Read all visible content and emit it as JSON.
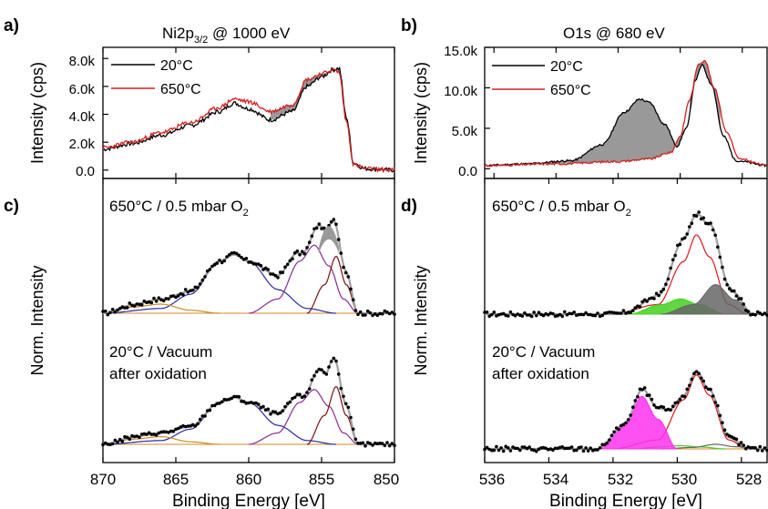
{
  "colors": {
    "rt": "#000000",
    "hot": "#d62020",
    "diff_fill": "#999999",
    "blue": "#2a2aa8",
    "purple": "#8a2a9a",
    "maroon": "#7a1010",
    "orange": "#d08a20",
    "red_comp": "#e01818",
    "green": "#44d020",
    "gray_comp": "#666666",
    "magenta": "#ff33ee",
    "envelope": "#a0a0a0",
    "dots": "#000000"
  },
  "panels": {
    "a": {
      "label": "a)",
      "title": "Ni2p",
      "title_sub": "3/2",
      "title_tail": " @ 1000 eV",
      "ylabel": "Intensity (cps)",
      "yticks": [
        "8.0k",
        "6.0k",
        "4.0k",
        "2.0k",
        "0.0"
      ],
      "legend": [
        "20°C",
        "650°C"
      ]
    },
    "b": {
      "label": "b)",
      "title": "O1s @ 680 eV",
      "ylabel": "Intensity (cps)",
      "yticks": [
        "15.0k",
        "10.0k",
        "5.0k",
        "0.0"
      ],
      "legend": [
        "20°C",
        "650°C"
      ]
    },
    "c": {
      "label": "c)",
      "ylabel": "Norm. Intensity",
      "top_label": "650°C / 0.5 mbar O",
      "top_label_sub": "2",
      "bottom_label_1": "20°C / Vacuum",
      "bottom_label_2": "after oxidation",
      "xticks": [
        "870",
        "865",
        "860",
        "855",
        "850"
      ],
      "xlabel": "Binding Energy [eV]"
    },
    "d": {
      "label": "d)",
      "ylabel": "Norm. Intensity",
      "top_label": "650°C / 0.5 mbar O",
      "top_label_sub": "2",
      "bottom_label_1": "20°C / Vacuum",
      "bottom_label_2": "after oxidation",
      "xticks": [
        "536",
        "534",
        "532",
        "530",
        "528"
      ],
      "xlabel": "Binding Energy [eV]"
    }
  },
  "chart_data": [
    {
      "id": "a",
      "type": "line",
      "xlabel": "",
      "ylabel": "Intensity (cps)",
      "xlim": [
        870,
        850
      ],
      "ylim": [
        -600,
        8800
      ],
      "series": [
        {
          "name": "20°C",
          "color": "#000000",
          "points": [
            [
              870,
              1500
            ],
            [
              868,
              1900
            ],
            [
              866,
              2500
            ],
            [
              864,
              3200
            ],
            [
              862,
              4200
            ],
            [
              861,
              4800
            ],
            [
              860,
              4400
            ],
            [
              858.5,
              3600
            ],
            [
              857,
              4200
            ],
            [
              856,
              6000
            ],
            [
              855,
              6700
            ],
            [
              854.2,
              7200
            ],
            [
              853.8,
              7300
            ],
            [
              853.3,
              3800
            ],
            [
              852.8,
              500
            ],
            [
              852,
              100
            ],
            [
              850,
              0
            ]
          ]
        },
        {
          "name": "650°C",
          "color": "#d62020",
          "points": [
            [
              870,
              1600
            ],
            [
              868,
              2000
            ],
            [
              866,
              2700
            ],
            [
              864,
              3400
            ],
            [
              862,
              4500
            ],
            [
              861,
              5100
            ],
            [
              860,
              4900
            ],
            [
              858.5,
              4200
            ],
            [
              857,
              4700
            ],
            [
              856,
              6500
            ],
            [
              855,
              6900
            ],
            [
              854.2,
              7200
            ],
            [
              853.8,
              7000
            ],
            [
              853.3,
              3500
            ],
            [
              852.8,
              400
            ],
            [
              852,
              100
            ],
            [
              850,
              0
            ]
          ]
        }
      ]
    },
    {
      "id": "b",
      "type": "line",
      "xlabel": "",
      "ylabel": "Intensity (cps)",
      "xlim": [
        536.3,
        527.2
      ],
      "ylim": [
        -1200,
        15000
      ],
      "series": [
        {
          "name": "20°C",
          "color": "#000000",
          "points": [
            [
              536.3,
              400
            ],
            [
              535,
              600
            ],
            [
              533.5,
              1000
            ],
            [
              532.5,
              3000
            ],
            [
              531.8,
              7000
            ],
            [
              531.3,
              8600
            ],
            [
              531,
              8200
            ],
            [
              530.5,
              5500
            ],
            [
              530.1,
              2800
            ],
            [
              529.8,
              5000
            ],
            [
              529.5,
              11000
            ],
            [
              529.3,
              12800
            ],
            [
              529,
              10500
            ],
            [
              528.6,
              4000
            ],
            [
              528.2,
              1000
            ],
            [
              527.2,
              400
            ]
          ]
        },
        {
          "name": "650°C",
          "color": "#d62020",
          "points": [
            [
              536.3,
              400
            ],
            [
              534,
              600
            ],
            [
              532,
              900
            ],
            [
              531,
              1200
            ],
            [
              530.3,
              2000
            ],
            [
              530,
              4000
            ],
            [
              529.7,
              8500
            ],
            [
              529.4,
              13000
            ],
            [
              529.2,
              13300
            ],
            [
              528.9,
              10000
            ],
            [
              528.5,
              4500
            ],
            [
              528.1,
              1200
            ],
            [
              527.2,
              400
            ]
          ]
        }
      ]
    },
    {
      "id": "c",
      "type": "line",
      "xlabel": "Binding Energy [eV]",
      "ylabel": "Norm. Intensity",
      "xlim": [
        870,
        850
      ],
      "ylim": [
        0,
        1
      ],
      "series": [
        {
          "name": "",
          "color": "#2a2aa8",
          "points": [
            [
              870,
              0
            ],
            [
              866,
              0.05
            ],
            [
              864,
              0.2
            ],
            [
              862,
              0.55
            ],
            [
              861,
              0.62
            ],
            [
              860,
              0.55
            ],
            [
              858,
              0.25
            ],
            [
              856,
              0.05
            ],
            [
              854,
              0
            ]
          ]
        },
        {
          "name": "",
          "color": "#8a2a9a",
          "points": [
            [
              860,
              0
            ],
            [
              858,
              0.15
            ],
            [
              856.5,
              0.55
            ],
            [
              855.5,
              0.72
            ],
            [
              854.5,
              0.5
            ],
            [
              853.5,
              0.15
            ],
            [
              852.5,
              0
            ]
          ]
        },
        {
          "name": "",
          "color": "#7a1010",
          "points": [
            [
              856,
              0
            ],
            [
              854.8,
              0.3
            ],
            [
              854,
              0.6
            ],
            [
              853.3,
              0.3
            ],
            [
              852.5,
              0
            ]
          ]
        },
        {
          "name": "",
          "color": "#d08a20",
          "points": [
            [
              870,
              0
            ],
            [
              868,
              0.08
            ],
            [
              866,
              0.12
            ],
            [
              864,
              0.04
            ],
            [
              862,
              0
            ]
          ]
        }
      ]
    },
    {
      "id": "d",
      "type": "line",
      "xlabel": "Binding Energy [eV]",
      "ylabel": "Norm. Intensity",
      "xlim": [
        536,
        527.2
      ],
      "ylim": [
        0,
        1
      ],
      "series": [
        {
          "name": "",
          "color": "#e01818",
          "points": [
            [
              532,
              0
            ],
            [
              530.6,
              0.1
            ],
            [
              529.8,
              0.55
            ],
            [
              529.4,
              0.83
            ],
            [
              529,
              0.6
            ],
            [
              528.4,
              0.1
            ],
            [
              527.8,
              0
            ]
          ]
        },
        {
          "name": "",
          "color": "#44d020",
          "points": [
            [
              531.5,
              0
            ],
            [
              530.5,
              0.1
            ],
            [
              529.9,
              0.16
            ],
            [
              529.3,
              0.1
            ],
            [
              528.5,
              0
            ]
          ]
        },
        {
          "name": "",
          "color": "#666666",
          "points": [
            [
              530.5,
              0
            ],
            [
              529.5,
              0.1
            ],
            [
              528.8,
              0.31
            ],
            [
              528.2,
              0.15
            ],
            [
              527.6,
              0
            ]
          ]
        },
        {
          "name": "",
          "color": "#ff33ee",
          "points": [
            [
              532.5,
              0
            ],
            [
              531.6,
              0.25
            ],
            [
              531.1,
              0.53
            ],
            [
              530.6,
              0.3
            ],
            [
              530,
              0
            ]
          ]
        }
      ]
    }
  ]
}
